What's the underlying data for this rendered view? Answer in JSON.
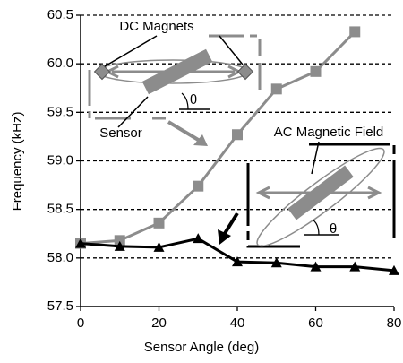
{
  "chart_data": {
    "type": "line",
    "x_label": "Sensor Angle (deg)",
    "y_label": "Frequency (kHz)",
    "xlim": [
      0,
      80
    ],
    "xticks": [
      0,
      20,
      40,
      60,
      80
    ],
    "ylim": [
      57.5,
      60.5
    ],
    "yticks": [
      {
        "value": 57.5,
        "label": "57.5"
      },
      {
        "value": 58,
        "label": "58.0"
      },
      {
        "value": 58.5,
        "label": "58.5"
      },
      {
        "value": 59,
        "label": "59.0"
      },
      {
        "value": 59.5,
        "label": "59.5"
      },
      {
        "value": 60,
        "label": "60.0"
      },
      {
        "value": 60.5,
        "label": "60.5"
      }
    ],
    "grid": true,
    "series": [
      {
        "color": "#8c8c8c",
        "marker": "square",
        "x": [
          0,
          10,
          20,
          30,
          40,
          50,
          60,
          70
        ],
        "values": [
          58.15,
          58.18,
          58.36,
          58.74,
          59.27,
          59.74,
          59.92,
          60.33
        ]
      },
      {
        "color": "#000000",
        "marker": "triangle",
        "x": [
          0,
          10,
          20,
          30,
          40,
          50,
          60,
          70,
          80
        ],
        "values": [
          58.15,
          58.12,
          58.11,
          58.2,
          57.96,
          57.95,
          57.91,
          57.91,
          57.87
        ]
      }
    ],
    "annotations": [
      "DC Magnets",
      "Sensor",
      "AC Magnetic Field",
      "θ",
      "θ"
    ]
  }
}
